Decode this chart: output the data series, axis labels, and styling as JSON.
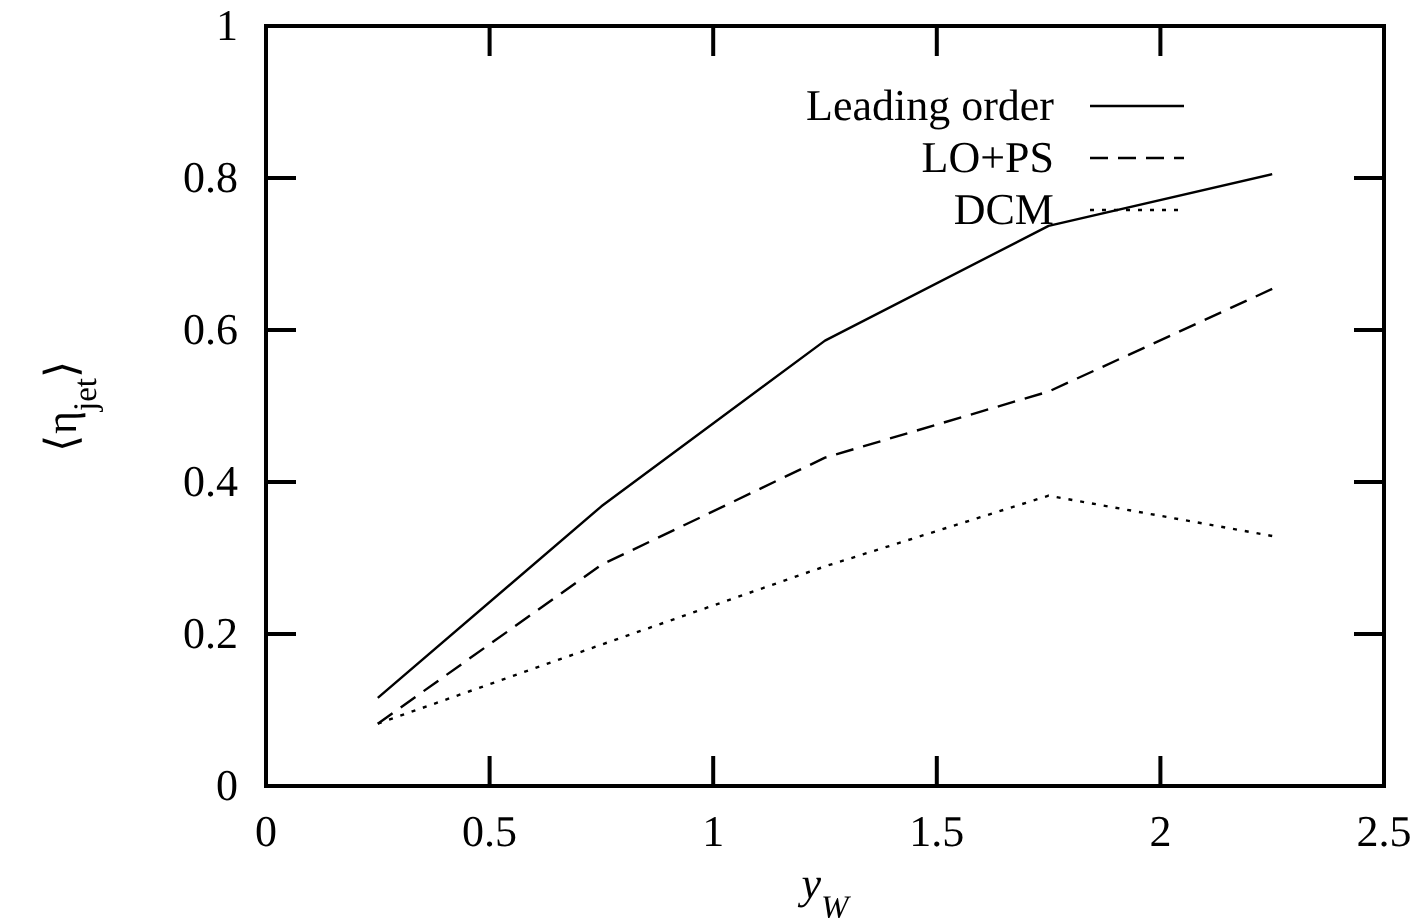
{
  "chart_data": {
    "type": "line",
    "xlabel": "y$_{W}$",
    "ylabel": "⟨η$_{jet}$⟩",
    "x": [
      0.25,
      0.75,
      1.25,
      1.75,
      2.25
    ],
    "series": [
      {
        "name": "Leading order",
        "color": "#000000",
        "line_style": "solid",
        "values": [
          0.116,
          0.368,
          0.586,
          0.737,
          0.805
        ]
      },
      {
        "name": "LO+PS",
        "color": "#000000",
        "line_style": "dashed",
        "values": [
          0.082,
          0.291,
          0.432,
          0.519,
          0.654
        ]
      },
      {
        "name": "DCM",
        "color": "#000000",
        "line_style": "dotted",
        "values": [
          0.082,
          0.186,
          0.289,
          0.382,
          0.329
        ]
      }
    ],
    "xlim": [
      0,
      2.5
    ],
    "xticks": [
      0,
      0.5,
      1,
      1.5,
      2,
      2.5
    ],
    "ylim": [
      0,
      1
    ],
    "yticks": [
      0,
      0.2,
      0.4,
      0.6,
      0.8,
      1
    ],
    "legend": "top",
    "grid": false
  }
}
